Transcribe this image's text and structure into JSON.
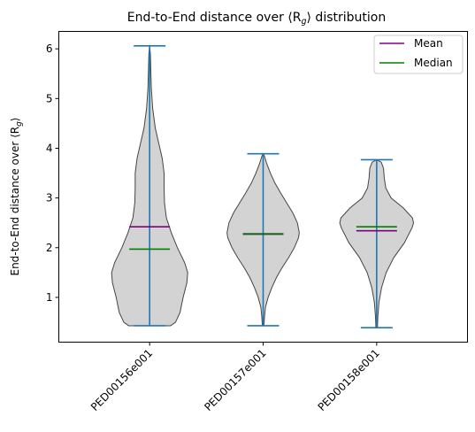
{
  "chart_data": {
    "type": "violin",
    "title": "End-to-End distance over ⟨R₍ᵍ₎⟩ distribution",
    "title_main": "End-to-End distance over ⟨R",
    "title_sub": "g",
    "title_end": "⟩ distribution",
    "ylabel_main": "End-to-End distance over ⟨R",
    "ylabel_sub": "g",
    "ylabel_end": "⟩",
    "categories": [
      "PED00156e001",
      "PED00157e001",
      "PED00158e001"
    ],
    "ylim": [
      0.1,
      6.35
    ],
    "yticks": [
      1,
      2,
      3,
      4,
      5,
      6
    ],
    "ytick_labels": [
      "1",
      "2",
      "3",
      "4",
      "5",
      "6"
    ],
    "grid": false,
    "legend_position": "top-right",
    "legend": [
      {
        "label": "Mean",
        "color": "#800080"
      },
      {
        "label": "Median",
        "color": "#008000"
      }
    ],
    "colors": {
      "violin_fill": "#d3d3d3",
      "violin_edge": "#444444",
      "whisker": "#1f77b4",
      "mean": "#800080",
      "median": "#008000"
    },
    "series": [
      {
        "category": "PED00156e001",
        "min": 0.43,
        "max": 6.06,
        "mean": 2.42,
        "median": 1.97,
        "profile": [
          [
            0.43,
            0.55
          ],
          [
            0.5,
            0.68
          ],
          [
            0.7,
            0.8
          ],
          [
            1.0,
            0.88
          ],
          [
            1.3,
            0.98
          ],
          [
            1.5,
            1.0
          ],
          [
            1.7,
            0.92
          ],
          [
            2.0,
            0.73
          ],
          [
            2.3,
            0.57
          ],
          [
            2.6,
            0.44
          ],
          [
            2.9,
            0.39
          ],
          [
            3.2,
            0.38
          ],
          [
            3.5,
            0.38
          ],
          [
            3.8,
            0.33
          ],
          [
            4.1,
            0.24
          ],
          [
            4.4,
            0.15
          ],
          [
            4.8,
            0.08
          ],
          [
            5.2,
            0.045
          ],
          [
            5.6,
            0.03
          ],
          [
            5.9,
            0.02
          ],
          [
            6.06,
            0.0
          ]
        ]
      },
      {
        "category": "PED00157e001",
        "min": 0.43,
        "max": 3.89,
        "mean": 2.27,
        "median": 2.28,
        "profile": [
          [
            0.43,
            0.02
          ],
          [
            0.6,
            0.035
          ],
          [
            0.8,
            0.06
          ],
          [
            1.0,
            0.13
          ],
          [
            1.2,
            0.23
          ],
          [
            1.4,
            0.35
          ],
          [
            1.6,
            0.5
          ],
          [
            1.8,
            0.67
          ],
          [
            2.0,
            0.82
          ],
          [
            2.2,
            0.93
          ],
          [
            2.3,
            0.95
          ],
          [
            2.5,
            0.9
          ],
          [
            2.7,
            0.78
          ],
          [
            2.9,
            0.62
          ],
          [
            3.1,
            0.46
          ],
          [
            3.3,
            0.31
          ],
          [
            3.5,
            0.19
          ],
          [
            3.7,
            0.09
          ],
          [
            3.85,
            0.03
          ],
          [
            3.89,
            0.0
          ]
        ]
      },
      {
        "category": "PED00158e001",
        "min": 0.39,
        "max": 3.77,
        "mean": 2.34,
        "median": 2.42,
        "profile": [
          [
            0.39,
            0.02
          ],
          [
            0.6,
            0.03
          ],
          [
            0.9,
            0.06
          ],
          [
            1.2,
            0.13
          ],
          [
            1.5,
            0.25
          ],
          [
            1.8,
            0.45
          ],
          [
            2.1,
            0.73
          ],
          [
            2.4,
            0.93
          ],
          [
            2.5,
            0.97
          ],
          [
            2.6,
            0.94
          ],
          [
            2.8,
            0.7
          ],
          [
            3.0,
            0.38
          ],
          [
            3.2,
            0.24
          ],
          [
            3.4,
            0.2
          ],
          [
            3.6,
            0.18
          ],
          [
            3.72,
            0.12
          ],
          [
            3.77,
            0.0
          ]
        ]
      }
    ]
  }
}
